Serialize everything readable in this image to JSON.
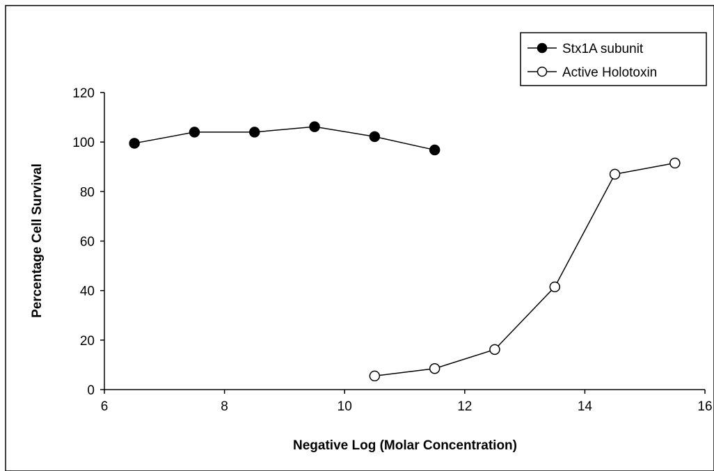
{
  "chart_data": {
    "type": "line",
    "title": "",
    "xlabel": "Negative Log (Molar Concentration)",
    "ylabel": "Percentage Cell Survival",
    "xlim": [
      6,
      16
    ],
    "ylim": [
      0,
      120
    ],
    "xticks": [
      6,
      8,
      10,
      12,
      14,
      16
    ],
    "yticks": [
      0,
      20,
      40,
      60,
      80,
      100,
      120
    ],
    "grid": false,
    "legend_position": "top-right",
    "series": [
      {
        "name": "Stx1A subunit",
        "marker": "filled-circle",
        "color": "#000000",
        "points": [
          {
            "x": 6.5,
            "y": 99.5
          },
          {
            "x": 7.5,
            "y": 104
          },
          {
            "x": 8.5,
            "y": 104
          },
          {
            "x": 9.5,
            "y": 106.2
          },
          {
            "x": 10.5,
            "y": 102.2
          },
          {
            "x": 11.5,
            "y": 96.8
          }
        ]
      },
      {
        "name": "Active Holotoxin",
        "marker": "open-circle",
        "color": "#000000",
        "points": [
          {
            "x": 10.5,
            "y": 5.5
          },
          {
            "x": 11.5,
            "y": 8.5
          },
          {
            "x": 12.5,
            "y": 16.2
          },
          {
            "x": 13.5,
            "y": 41.5
          },
          {
            "x": 14.5,
            "y": 87
          },
          {
            "x": 15.5,
            "y": 91.5
          }
        ]
      }
    ]
  }
}
